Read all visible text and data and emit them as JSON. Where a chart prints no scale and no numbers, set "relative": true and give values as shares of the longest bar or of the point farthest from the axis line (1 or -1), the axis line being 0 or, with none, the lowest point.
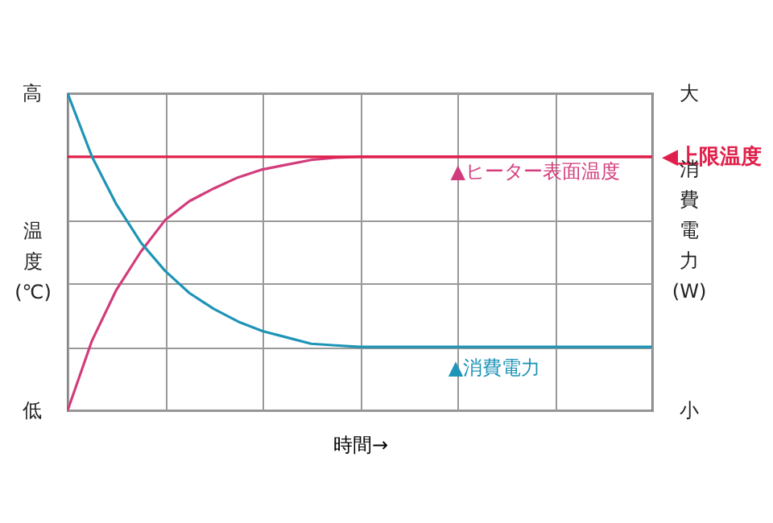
{
  "chart_data": {
    "type": "line",
    "relative": true,
    "xlabel": "時間→",
    "ylabel": "温度(℃)",
    "y2label": "消費電力(W)",
    "categories": [
      null,
      null,
      null,
      null,
      null,
      null,
      null,
      null,
      null,
      null,
      null,
      null,
      null,
      null,
      null,
      null,
      null,
      null,
      null,
      null,
      null,
      null,
      null,
      null,
      null
    ],
    "series": [
      {
        "name": "▲ヒーター表面温度",
        "color": "#d23c7c",
        "values": [
          0,
          0.22,
          0.38,
          0.5,
          0.6,
          0.66,
          0.7,
          0.735,
          0.76,
          0.775,
          0.79,
          0.797,
          0.8,
          0.8,
          0.8,
          0.8,
          0.8,
          0.8,
          0.8,
          0.8,
          0.8,
          0.8,
          0.8,
          0.8,
          0.8
        ]
      },
      {
        "name": "▲消費電力",
        "color": "#1e94b6",
        "values": [
          1,
          0.8,
          0.65,
          0.53,
          0.44,
          0.37,
          0.32,
          0.28,
          0.25,
          0.23,
          0.21,
          0.205,
          0.2,
          0.2,
          0.2,
          0.2,
          0.2,
          0.2,
          0.2,
          0.2,
          0.2,
          0.2,
          0.2,
          0.2,
          0.2
        ]
      }
    ],
    "ref_lines": [
      {
        "axis": "y",
        "value": 0.8,
        "label": "◀上限温度",
        "color": "#e0204a"
      }
    ],
    "annotations": [
      "高",
      "低",
      "大",
      "小"
    ],
    "grid": true
  }
}
